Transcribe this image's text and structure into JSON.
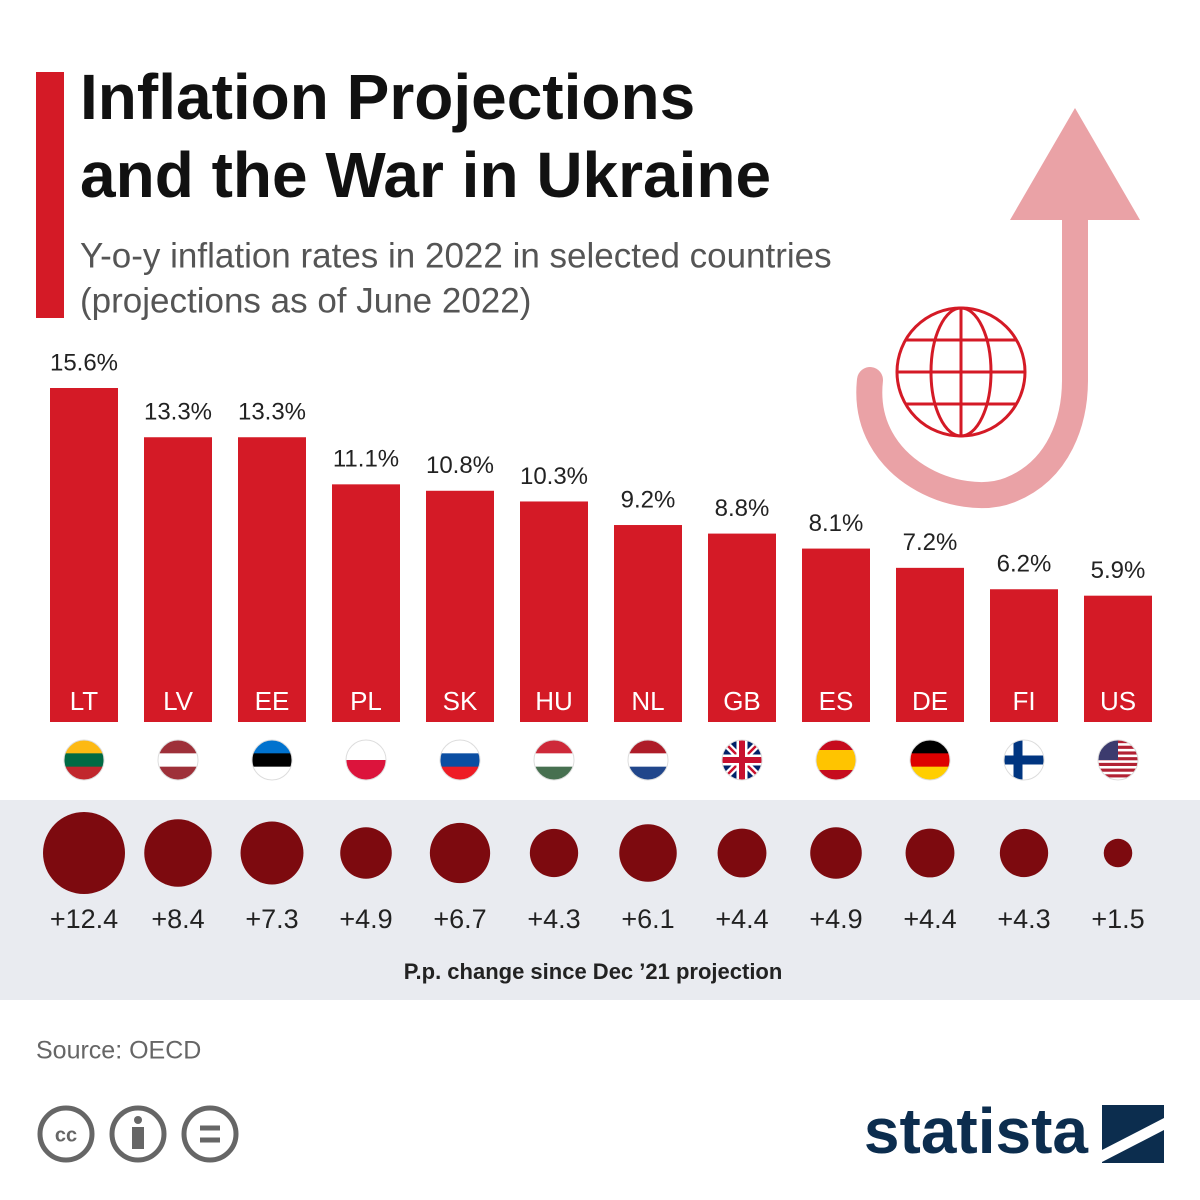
{
  "chart_data": {
    "type": "bar",
    "title": [
      "Inflation Projections",
      "and the War in Ukraine"
    ],
    "subtitle": [
      "Y-o-y inflation rates in 2022 in selected countries",
      "(projections as of June 2022)"
    ],
    "categories": [
      "LT",
      "LV",
      "EE",
      "PL",
      "SK",
      "HU",
      "NL",
      "GB",
      "ES",
      "DE",
      "FI",
      "US"
    ],
    "values": [
      15.6,
      13.3,
      13.3,
      11.1,
      10.8,
      10.3,
      9.2,
      8.8,
      8.1,
      7.2,
      6.2,
      5.9
    ],
    "value_labels": [
      "15.6%",
      "13.3%",
      "13.3%",
      "11.1%",
      "10.8%",
      "10.3%",
      "9.2%",
      "8.8%",
      "8.1%",
      "7.2%",
      "6.2%",
      "5.9%"
    ],
    "color": "#d41a26",
    "change": {
      "label": "P.p. change since Dec ’21 projection",
      "values": [
        12.4,
        8.4,
        7.3,
        4.9,
        6.7,
        4.3,
        6.1,
        4.4,
        4.9,
        4.4,
        4.3,
        1.5
      ],
      "value_labels": [
        "+12.4",
        "+8.4",
        "+7.3",
        "+4.9",
        "+6.7",
        "+4.3",
        "+6.1",
        "+4.4",
        "+4.9",
        "+4.4",
        "+4.3",
        "+1.5"
      ],
      "color": "#7d0a0f"
    },
    "source": "Source: OECD",
    "brand": "statista"
  }
}
